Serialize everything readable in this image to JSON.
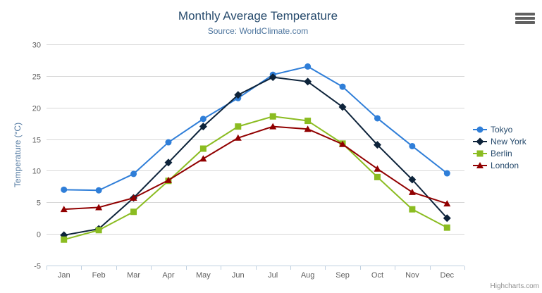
{
  "chart": {
    "credits": "Highcharts.com",
    "menu_icon": "hamburger-icon"
  },
  "chart_data": {
    "type": "line",
    "title": "Monthly Average Temperature",
    "subtitle": "Source: WorldClimate.com",
    "xlabel": "",
    "ylabel": "Temperature (°C)",
    "ylim": [
      -5,
      30
    ],
    "yticks": [
      -5,
      0,
      5,
      10,
      15,
      20,
      25,
      30
    ],
    "grid": true,
    "legend_position": "right",
    "categories": [
      "Jan",
      "Feb",
      "Mar",
      "Apr",
      "May",
      "Jun",
      "Jul",
      "Aug",
      "Sep",
      "Oct",
      "Nov",
      "Dec"
    ],
    "series": [
      {
        "name": "Tokyo",
        "color": "#2f7ed8",
        "marker": "circle",
        "values": [
          7.0,
          6.9,
          9.5,
          14.5,
          18.2,
          21.5,
          25.2,
          26.5,
          23.3,
          18.3,
          13.9,
          9.6
        ]
      },
      {
        "name": "New York",
        "color": "#0d233a",
        "marker": "diamond",
        "values": [
          -0.2,
          0.8,
          5.7,
          11.3,
          17.0,
          22.0,
          24.8,
          24.1,
          20.1,
          14.1,
          8.6,
          2.5
        ]
      },
      {
        "name": "Berlin",
        "color": "#8bbc21",
        "marker": "square",
        "values": [
          -0.9,
          0.6,
          3.5,
          8.4,
          13.5,
          17.0,
          18.6,
          17.9,
          14.3,
          9.0,
          3.9,
          1.0
        ]
      },
      {
        "name": "London",
        "color": "#910000",
        "marker": "triangle",
        "values": [
          3.9,
          4.2,
          5.7,
          8.5,
          11.9,
          15.2,
          17.0,
          16.6,
          14.2,
          10.3,
          6.6,
          4.8
        ]
      }
    ],
    "style": {
      "grid_color": "#d8d8d8",
      "axis_line_color": "#c0d0e0",
      "tick_label_color": "#606060"
    }
  }
}
